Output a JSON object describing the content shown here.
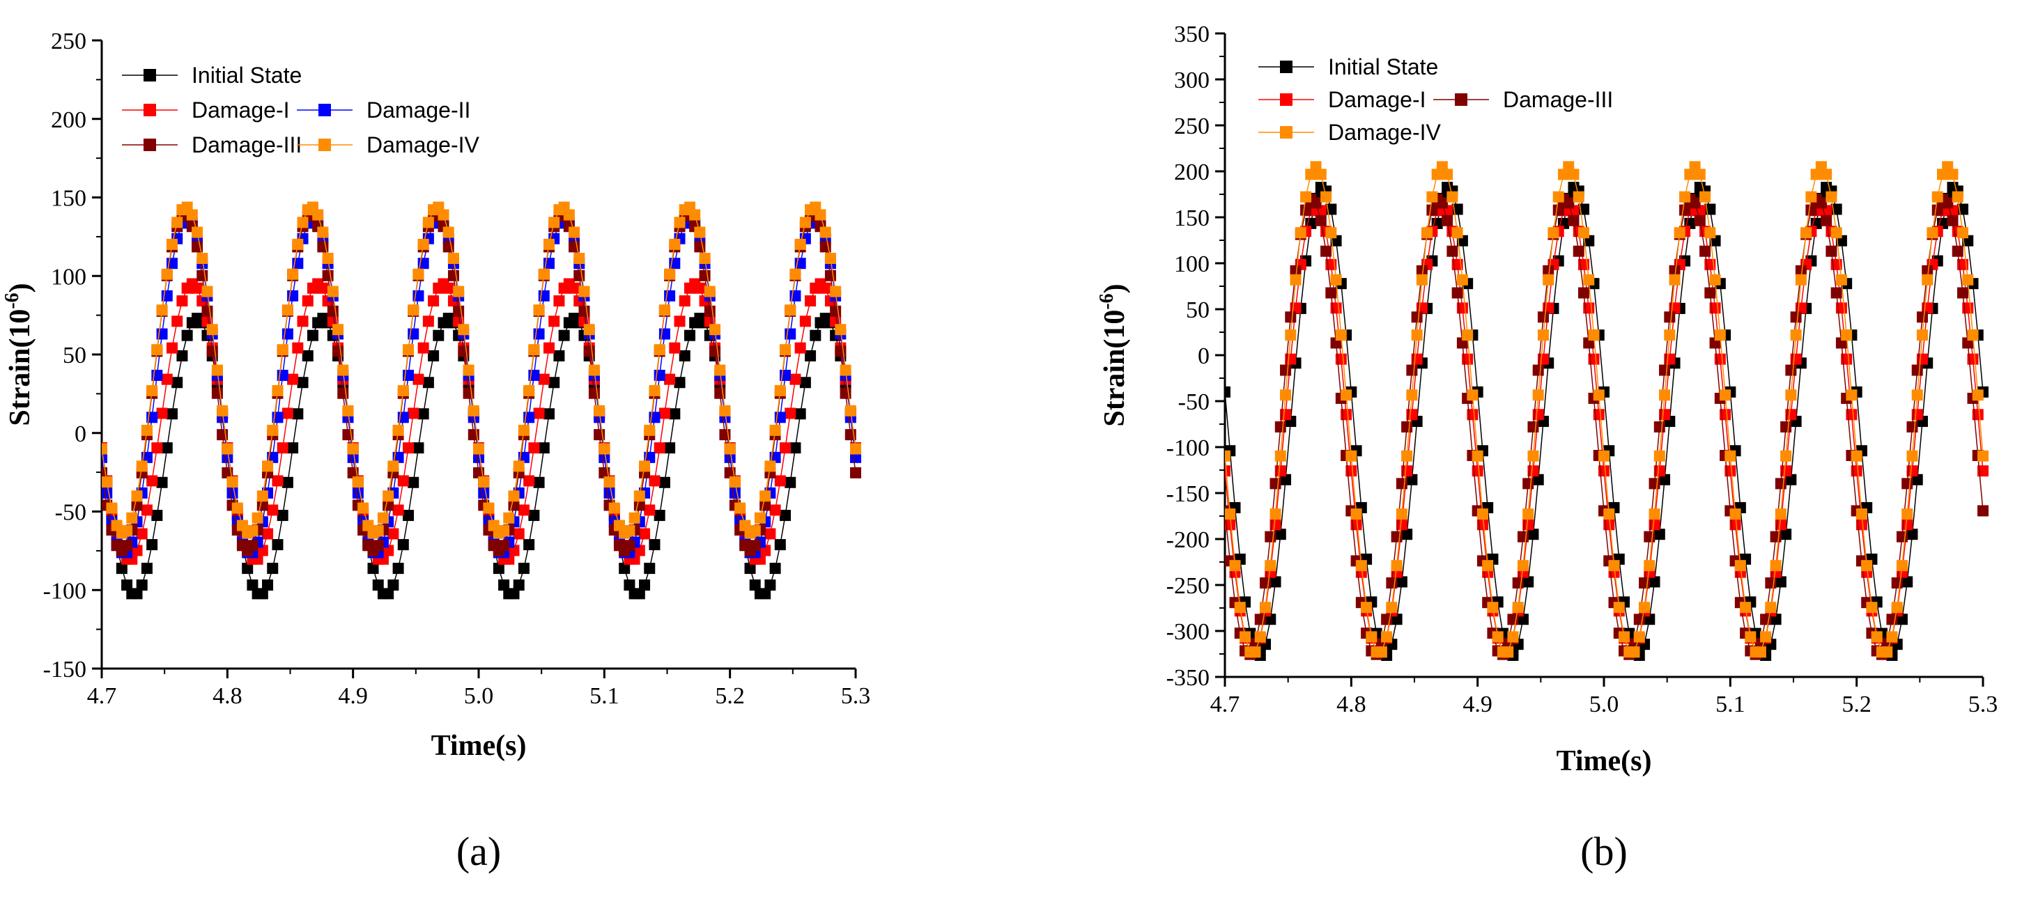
{
  "chart_data": [
    {
      "type": "scatter",
      "panel_label": "(a)",
      "xlabel": "Time(s)",
      "ylabel_base": "Strain(10",
      "ylabel_exp": "-6",
      "ylabel_close": ")",
      "xlim": [
        4.7,
        5.3
      ],
      "ylim": [
        -150,
        250
      ],
      "xticks": [
        4.7,
        4.8,
        4.9,
        5.0,
        5.1,
        5.2,
        5.3
      ],
      "xtick_labels": [
        "4.7",
        "4.8",
        "4.9",
        "5.0",
        "5.1",
        "5.2",
        "5.3"
      ],
      "yticks": [
        -150,
        -100,
        -50,
        0,
        50,
        100,
        150,
        200,
        250
      ],
      "ytick_labels": [
        "-150",
        "-100",
        "-50",
        "0",
        "50",
        "100",
        "150",
        "200",
        "250"
      ],
      "legend_position": "top-left",
      "period_s": 0.1,
      "sample_step_s": 0.004,
      "series": [
        {
          "name": "Initial State",
          "color": "#000000",
          "mean": -15,
          "amplitude": 88,
          "peak_time": 4.776
        },
        {
          "name": "Damage-I",
          "color": "#ff0000",
          "mean": 7,
          "amplitude": 88,
          "peak_time": 4.772
        },
        {
          "name": "Damage-II",
          "color": "#0000ff",
          "mean": 30,
          "amplitude": 107,
          "peak_time": 4.768
        },
        {
          "name": "Damage-III",
          "color": "#800000",
          "mean": 32,
          "amplitude": 107,
          "peak_time": 4.766
        },
        {
          "name": "Damage-IV",
          "color": "#ff8c00",
          "mean": 40,
          "amplitude": 104,
          "peak_time": 4.767
        }
      ]
    },
    {
      "type": "scatter",
      "panel_label": "(b)",
      "xlabel": "Time(s)",
      "ylabel_base": "Strain(10",
      "ylabel_exp": "-6",
      "ylabel_close": ")",
      "xlim": [
        4.7,
        5.3
      ],
      "ylim": [
        -350,
        350
      ],
      "xticks": [
        4.7,
        4.8,
        4.9,
        5.0,
        5.1,
        5.2,
        5.3
      ],
      "xtick_labels": [
        "4.7",
        "4.8",
        "4.9",
        "5.0",
        "5.1",
        "5.2",
        "5.3"
      ],
      "yticks": [
        -350,
        -300,
        -250,
        -200,
        -150,
        -100,
        -50,
        0,
        50,
        100,
        150,
        200,
        250,
        300,
        350
      ],
      "ytick_labels": [
        "-350",
        "-300",
        "-250",
        "-200",
        "-150",
        "-100",
        "-50",
        "0",
        "50",
        "100",
        "150",
        "200",
        "250",
        "300",
        "350"
      ],
      "legend_position": "top-left",
      "period_s": 0.1,
      "sample_step_s": 0.004,
      "series": [
        {
          "name": "Initial State",
          "color": "#000000",
          "mean": -72,
          "amplitude": 255,
          "peak_time": 4.777
        },
        {
          "name": "Damage-I",
          "color": "#ff0000",
          "mean": -80,
          "amplitude": 245,
          "peak_time": 4.772
        },
        {
          "name": "Damage-III",
          "color": "#800000",
          "mean": -78,
          "amplitude": 248,
          "peak_time": 4.769
        },
        {
          "name": "Damage-IV",
          "color": "#ff8c00",
          "mean": -60,
          "amplitude": 265,
          "peak_time": 4.772
        }
      ]
    }
  ]
}
